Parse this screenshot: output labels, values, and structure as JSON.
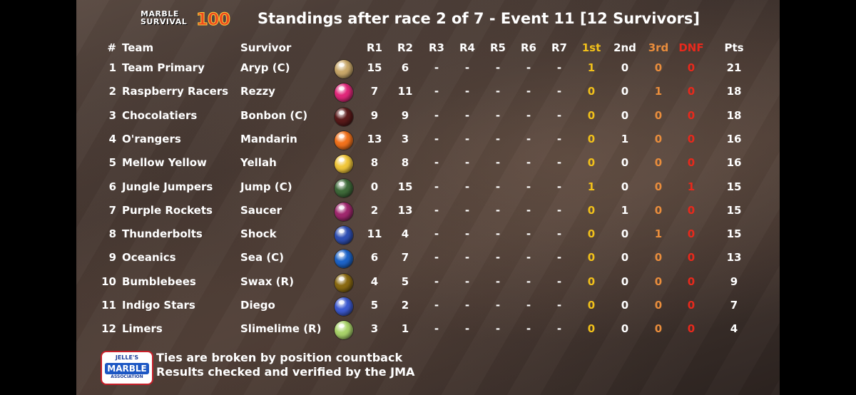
{
  "logo": {
    "line1": "MARBLE",
    "line2": "SURVIVAL",
    "number": "100"
  },
  "title": "Standings after race 2 of 7 - Event 11 [12 Survivors]",
  "headers": {
    "num": "#",
    "team": "Team",
    "survivor": "Survivor",
    "r1": "R1",
    "r2": "R2",
    "r3": "R3",
    "r4": "R4",
    "r5": "R5",
    "r6": "R6",
    "r7": "R7",
    "first": "1st",
    "second": "2nd",
    "third": "3rd",
    "dnf": "DNF",
    "pts": "Pts"
  },
  "rows": [
    {
      "num": "1",
      "team": "Team Primary",
      "survivor": "Aryp (C)",
      "marble_color": "#c9a86a",
      "r1": "15",
      "r2": "6",
      "r3": "-",
      "r4": "-",
      "r5": "-",
      "r6": "-",
      "r7": "-",
      "first": "1",
      "second": "0",
      "third": "0",
      "dnf": "0",
      "pts": "21"
    },
    {
      "num": "2",
      "team": "Raspberry Racers",
      "survivor": "Rezzy",
      "marble_color": "#e0287a",
      "r1": "7",
      "r2": "11",
      "r3": "-",
      "r4": "-",
      "r5": "-",
      "r6": "-",
      "r7": "-",
      "first": "0",
      "second": "0",
      "third": "1",
      "dnf": "0",
      "pts": "18"
    },
    {
      "num": "3",
      "team": "Chocolatiers",
      "survivor": "Bonbon (C)",
      "marble_color": "#5a1a1a",
      "r1": "9",
      "r2": "9",
      "r3": "-",
      "r4": "-",
      "r5": "-",
      "r6": "-",
      "r7": "-",
      "first": "0",
      "second": "0",
      "third": "0",
      "dnf": "0",
      "pts": "18"
    },
    {
      "num": "4",
      "team": "O'rangers",
      "survivor": "Mandarin",
      "marble_color": "#f2721c",
      "r1": "13",
      "r2": "3",
      "r3": "-",
      "r4": "-",
      "r5": "-",
      "r6": "-",
      "r7": "-",
      "first": "0",
      "second": "1",
      "third": "0",
      "dnf": "0",
      "pts": "16"
    },
    {
      "num": "5",
      "team": "Mellow Yellow",
      "survivor": "Yellah",
      "marble_color": "#f0c63a",
      "r1": "8",
      "r2": "8",
      "r3": "-",
      "r4": "-",
      "r5": "-",
      "r6": "-",
      "r7": "-",
      "first": "0",
      "second": "0",
      "third": "0",
      "dnf": "0",
      "pts": "16"
    },
    {
      "num": "6",
      "team": "Jungle Jumpers",
      "survivor": "Jump (C)",
      "marble_color": "#3f6a3a",
      "r1": "0",
      "r2": "15",
      "r3": "-",
      "r4": "-",
      "r5": "-",
      "r6": "-",
      "r7": "-",
      "first": "1",
      "second": "0",
      "third": "0",
      "dnf": "1",
      "pts": "15"
    },
    {
      "num": "7",
      "team": "Purple Rockets",
      "survivor": "Saucer",
      "marble_color": "#a0286e",
      "r1": "2",
      "r2": "13",
      "r3": "-",
      "r4": "-",
      "r5": "-",
      "r6": "-",
      "r7": "-",
      "first": "0",
      "second": "1",
      "third": "0",
      "dnf": "0",
      "pts": "15"
    },
    {
      "num": "8",
      "team": "Thunderbolts",
      "survivor": "Shock",
      "marble_color": "#2f4fb3",
      "r1": "11",
      "r2": "4",
      "r3": "-",
      "r4": "-",
      "r5": "-",
      "r6": "-",
      "r7": "-",
      "first": "0",
      "second": "0",
      "third": "1",
      "dnf": "0",
      "pts": "15"
    },
    {
      "num": "9",
      "team": "Oceanics",
      "survivor": "Sea (C)",
      "marble_color": "#1d64c8",
      "r1": "6",
      "r2": "7",
      "r3": "-",
      "r4": "-",
      "r5": "-",
      "r6": "-",
      "r7": "-",
      "first": "0",
      "second": "0",
      "third": "0",
      "dnf": "0",
      "pts": "13"
    },
    {
      "num": "10",
      "team": "Bumblebees",
      "survivor": "Swax (R)",
      "marble_color": "#8a6a12",
      "r1": "4",
      "r2": "5",
      "r3": "-",
      "r4": "-",
      "r5": "-",
      "r6": "-",
      "r7": "-",
      "first": "0",
      "second": "0",
      "third": "0",
      "dnf": "0",
      "pts": "9"
    },
    {
      "num": "11",
      "team": "Indigo Stars",
      "survivor": "Diego",
      "marble_color": "#3d5ad0",
      "r1": "5",
      "r2": "2",
      "r3": "-",
      "r4": "-",
      "r5": "-",
      "r6": "-",
      "r7": "-",
      "first": "0",
      "second": "0",
      "third": "0",
      "dnf": "0",
      "pts": "7"
    },
    {
      "num": "12",
      "team": "Limers",
      "survivor": "Slimelime (R)",
      "marble_color": "#a9d36a",
      "r1": "3",
      "r2": "1",
      "r3": "-",
      "r4": "-",
      "r5": "-",
      "r6": "-",
      "r7": "-",
      "first": "0",
      "second": "0",
      "third": "0",
      "dnf": "0",
      "pts": "4"
    }
  ],
  "footer": {
    "logo": {
      "line1": "JELLE'S",
      "line2": "MARBLE",
      "line3": "ASSOCIATION"
    },
    "line1": "Ties are broken by position countback",
    "line2": "Results checked and verified by the JMA"
  },
  "colors": {
    "first": "#f2c11a",
    "third": "#e98d3c",
    "dnf": "#e8291c"
  }
}
